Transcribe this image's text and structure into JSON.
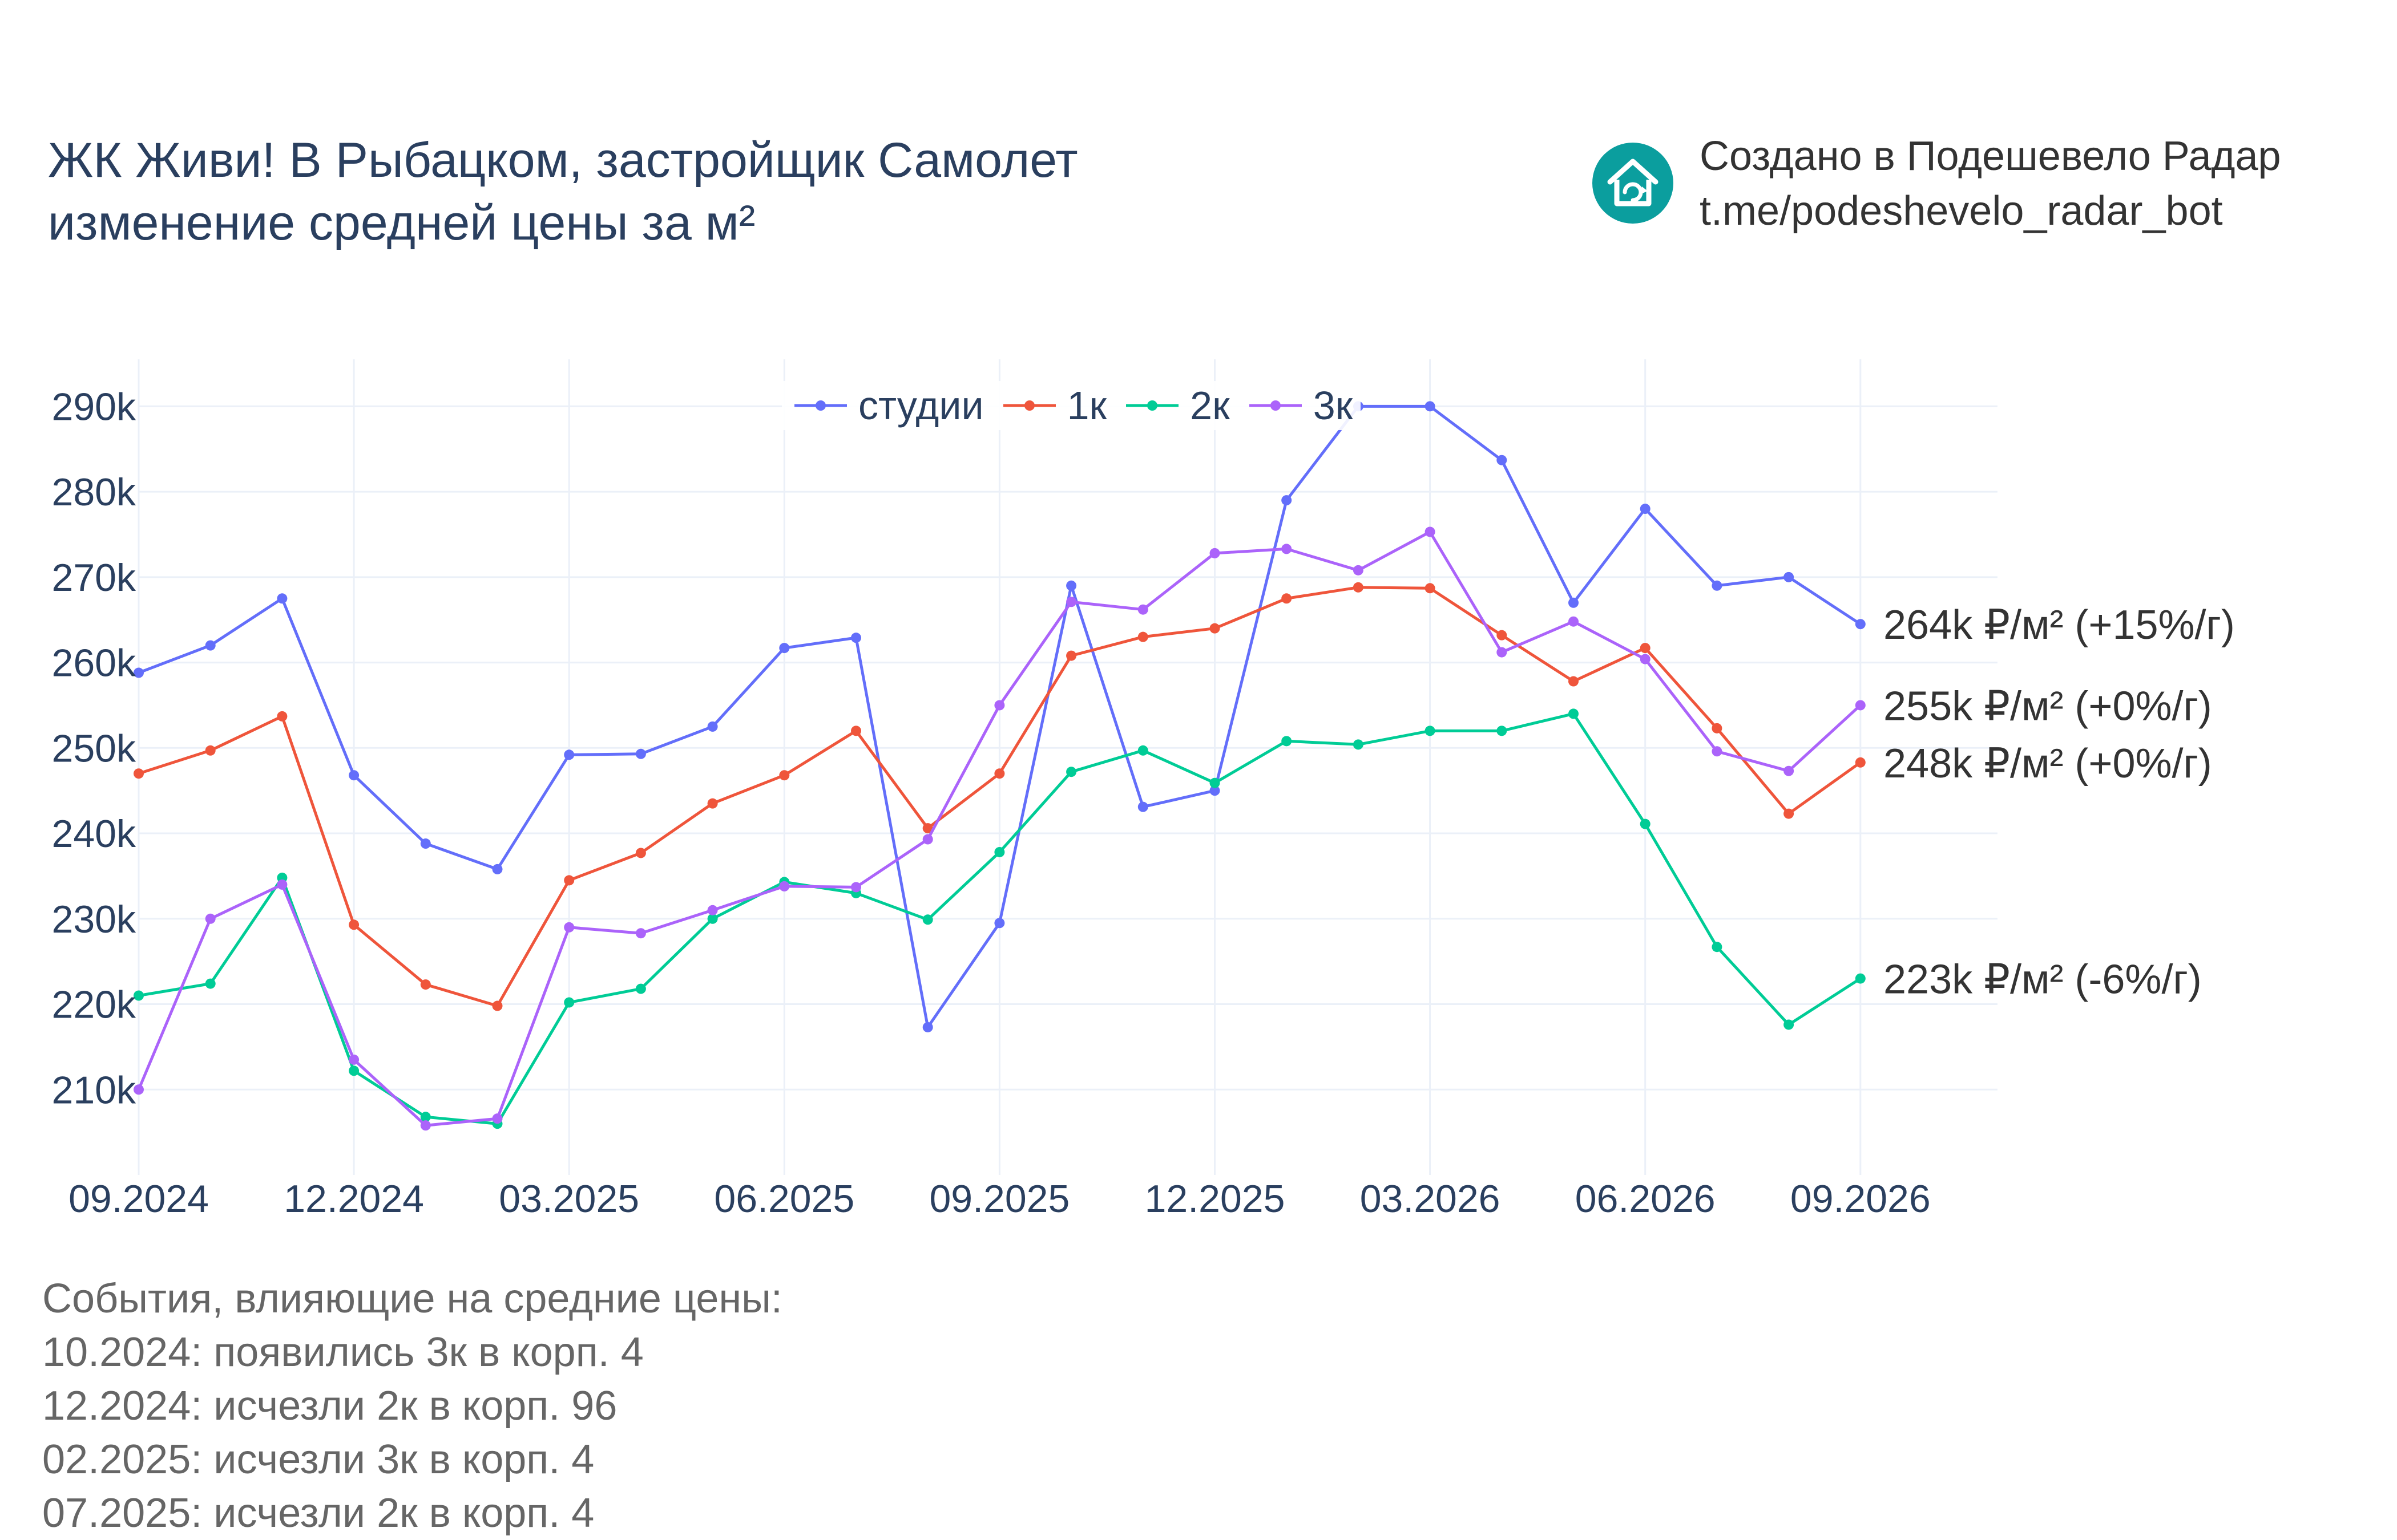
{
  "title_lines": [
    "ЖК Живи! В Рыбацком, застройщик Самолет",
    "изменение средней цены за м²"
  ],
  "brand": {
    "line1": "Создано в Подешевело Радар",
    "line2": "t.me/podeshevelo_radar_bot",
    "logo_icon": "house-refresh-icon",
    "logo_color": "#0b9e9e"
  },
  "events": {
    "heading": "События, влияющие на средние цены:",
    "items": [
      "10.2024: появились 3к в корп. 4",
      "12.2024: исчезли 2к в корп. 96",
      "02.2025: исчезли 3к в корп. 4",
      "07.2025: исчезли 2к в корп. 4"
    ]
  },
  "chart_data": {
    "type": "line",
    "x": [
      "2024-09",
      "2024-10",
      "2024-11",
      "2024-12",
      "2025-01",
      "2025-02",
      "2025-03",
      "2025-04",
      "2025-05",
      "2025-06",
      "2025-07",
      "2025-08",
      "2025-09",
      "2025-10",
      "2025-11",
      "2025-12",
      "2026-01",
      "2026-02",
      "2026-03",
      "2026-04",
      "2026-05",
      "2026-06",
      "2026-07",
      "2026-08",
      "2026-09"
    ],
    "x_tick_labels": [
      "09.2024",
      "12.2024",
      "03.2025",
      "06.2025",
      "09.2025",
      "12.2025",
      "03.2026",
      "06.2026",
      "09.2026"
    ],
    "x_tick_positions": [
      "2024-09",
      "2024-12",
      "2025-03",
      "2025-06",
      "2025-09",
      "2025-12",
      "2026-03",
      "2026-06",
      "2026-09"
    ],
    "y_tick_values": [
      210000,
      220000,
      230000,
      240000,
      250000,
      260000,
      270000,
      280000,
      290000
    ],
    "y_tick_labels": [
      "210k",
      "220k",
      "230k",
      "240k",
      "250k",
      "260k",
      "270k",
      "280k",
      "290k"
    ],
    "ylim": [
      200000,
      295500
    ],
    "grid": true,
    "legend_position": "top-center",
    "series": [
      {
        "name": "студии",
        "color": "#636efa",
        "values": [
          258800,
          262000,
          267500,
          246800,
          238800,
          235800,
          249200,
          249300,
          252500,
          261700,
          262900,
          217300,
          229500,
          269000,
          243100,
          245000,
          279000,
          290000,
          290000,
          283700,
          267000,
          278000,
          269000,
          270000,
          264500
        ],
        "end_label": "264k ₽/м² (+15%/г)"
      },
      {
        "name": "1к",
        "color": "#ef553b",
        "values": [
          247000,
          249700,
          253700,
          229300,
          222300,
          219800,
          234500,
          237700,
          243500,
          246800,
          252000,
          240600,
          247000,
          260800,
          263000,
          264000,
          267500,
          268800,
          268700,
          263200,
          257800,
          261700,
          252300,
          242300,
          248300
        ],
        "end_label": "248k ₽/м² (+0%/г)"
      },
      {
        "name": "2к",
        "color": "#00cc96",
        "values": [
          221000,
          222400,
          234800,
          212200,
          206800,
          206000,
          220200,
          221800,
          230000,
          234300,
          233000,
          229900,
          237800,
          247200,
          249700,
          245900,
          250800,
          250400,
          252000,
          252000,
          254000,
          241100,
          226700,
          217600,
          223000
        ],
        "end_label": "223k ₽/м² (-6%/г)"
      },
      {
        "name": "3к",
        "color": "#ab63fa",
        "values": [
          210000,
          230000,
          234000,
          213500,
          205800,
          206600,
          229000,
          228300,
          231000,
          233800,
          233700,
          239300,
          255000,
          267100,
          266200,
          272800,
          273300,
          270800,
          275300,
          261200,
          264800,
          260400,
          249600,
          247300,
          255000
        ],
        "end_label": "255k ₽/м² (+0%/г)"
      }
    ]
  }
}
